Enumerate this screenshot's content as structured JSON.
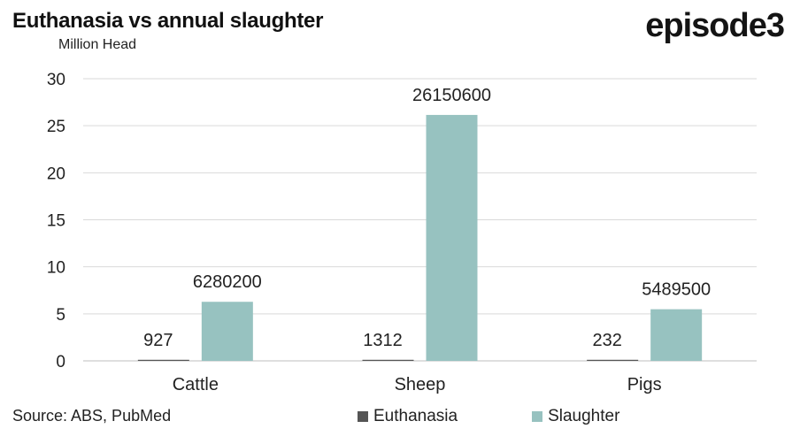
{
  "header": {
    "title": "Euthanasia vs annual slaughter",
    "unit_label": "Million Head",
    "logo_text": "episode3"
  },
  "footer": {
    "source": "Source: ABS, PubMed"
  },
  "colors": {
    "euthanasia": "#555555",
    "slaughter": "#97C2C0",
    "grid": "#d9d9d9",
    "axis": "#bfbfbf"
  },
  "chart_data": {
    "type": "bar",
    "title": "Euthanasia vs annual slaughter",
    "ylabel": "Million Head",
    "xlabel": "",
    "categories": [
      "Cattle",
      "Sheep",
      "Pigs"
    ],
    "series": [
      {
        "name": "Euthanasia",
        "values": [
          0.000927,
          0.001312,
          0.000232
        ],
        "labels": [
          "927",
          "1312",
          "232"
        ]
      },
      {
        "name": "Slaughter",
        "values": [
          6.2802,
          26.1506,
          5.4895
        ],
        "labels": [
          "6280200",
          "26150600",
          "5489500"
        ]
      }
    ],
    "ylim": [
      0,
      30
    ],
    "yticks": [
      "0",
      "5",
      "10",
      "15",
      "20",
      "25",
      "30"
    ],
    "ytick_values": [
      0,
      5,
      10,
      15,
      20,
      25,
      30
    ],
    "grid": true,
    "legend_position": "bottom"
  }
}
